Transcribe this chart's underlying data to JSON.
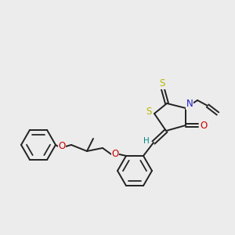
{
  "bg_color": "#ececec",
  "bond_color": "#222222",
  "bond_width": 1.4,
  "S_color": "#b8b800",
  "N_color": "#1c1ccc",
  "O_color": "#cc0000",
  "H_color": "#008888",
  "figsize": [
    3.0,
    3.0
  ],
  "dpi": 100,
  "xlim": [
    0,
    300
  ],
  "ylim": [
    0,
    300
  ]
}
